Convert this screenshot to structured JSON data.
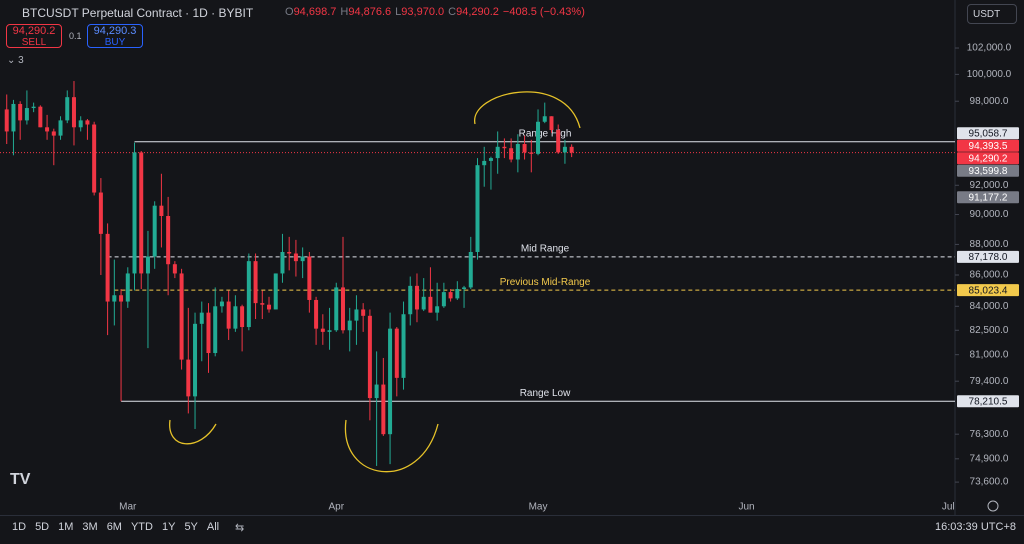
{
  "header": {
    "title": "BTCUSDT Perpetual Contract · 1D · BYBIT",
    "ohlc": [
      {
        "key": "O",
        "value": "94,698.7"
      },
      {
        "key": "H",
        "value": "94,876.6"
      },
      {
        "key": "L",
        "value": "93,970.0"
      },
      {
        "key": "C",
        "value": "94,290.2"
      }
    ],
    "change": "−408.5 (−0.43%)",
    "sell_price": "94,290.2",
    "sell": "SELL",
    "spread": "0.1",
    "buy_price": "94,290.3",
    "buy": "BUY",
    "indicators": "3",
    "currency": "USDT"
  },
  "toolbar": {
    "ranges": [
      "1D",
      "5D",
      "1M",
      "3M",
      "6M",
      "YTD",
      "1Y",
      "5Y",
      "All"
    ],
    "time": "16:03:39 UTC+8"
  },
  "chart_data": {
    "type": "candlestick",
    "log_scale": true,
    "up_color": "#22ab94",
    "down_color": "#f23645",
    "categories": [
      null,
      null,
      null,
      null,
      null,
      null,
      null,
      null,
      null,
      null,
      null,
      null,
      null,
      null,
      null,
      null,
      null,
      null,
      null,
      null,
      null,
      null,
      null,
      null,
      null,
      null,
      null,
      null,
      null,
      null,
      null,
      null,
      null,
      null,
      null,
      null,
      null,
      null,
      null,
      null,
      null,
      null,
      null,
      null,
      null,
      null,
      null,
      null,
      null,
      null,
      null,
      null,
      null,
      null,
      null,
      null,
      null,
      null,
      null,
      null,
      null,
      null,
      null,
      null,
      null,
      null,
      null,
      null,
      null,
      null,
      null,
      null,
      null,
      null,
      null,
      null,
      null,
      null,
      null,
      null,
      null,
      null,
      null,
      null,
      null
    ],
    "open": [
      97400,
      95800,
      97800,
      96600,
      97500,
      97600,
      96100,
      95800,
      95500,
      96600,
      98300,
      96100,
      96600,
      96300,
      91500,
      88700,
      84300,
      84700,
      84300,
      86100,
      94300,
      86100,
      87200,
      90600,
      89900,
      86700,
      86100,
      80700,
      78500,
      82900,
      83600,
      81100,
      84000,
      84300,
      82600,
      84000,
      82700,
      86900,
      84200,
      84100,
      83800,
      86100,
      87500,
      87400,
      86900,
      87200,
      84400,
      82600,
      82400,
      82500,
      85200,
      82500,
      83100,
      83800,
      83400,
      78400,
      79200,
      76300,
      82600,
      79600,
      83500,
      85300,
      83800,
      84600,
      83600,
      84000,
      84900,
      84500,
      85100,
      85200,
      87500,
      93400,
      93700,
      93900,
      94700,
      94600,
      93800,
      94900,
      94300,
      94200,
      96500,
      96900,
      95900,
      94300,
      94698.7
    ],
    "high": [
      98500,
      98100,
      98000,
      98800,
      97900,
      97700,
      97000,
      96000,
      96900,
      98800,
      99500,
      96900,
      96700,
      96500,
      92500,
      89400,
      87000,
      85100,
      86500,
      95000,
      94400,
      88900,
      90900,
      92800,
      91200,
      86900,
      86400,
      83900,
      83600,
      84300,
      84200,
      85200,
      84600,
      85000,
      84700,
      84100,
      87400,
      87400,
      85000,
      84600,
      86100,
      88700,
      88500,
      88300,
      87800,
      87500,
      84600,
      83500,
      83900,
      85500,
      88500,
      83900,
      84700,
      84200,
      83800,
      81200,
      80800,
      83600,
      82700,
      84300,
      85900,
      86100,
      85800,
      86500,
      85500,
      85500,
      85100,
      85600,
      85300,
      88500,
      93900,
      94700,
      94000,
      95800,
      95300,
      95300,
      95600,
      95500,
      95200,
      97400,
      97900,
      96900,
      96300,
      95200,
      94876.6
    ],
    "low": [
      94900,
      94100,
      95200,
      96300,
      97200,
      96100,
      95200,
      93400,
      95200,
      96400,
      94800,
      95800,
      95200,
      91300,
      86000,
      82200,
      82800,
      78210.5,
      83900,
      85000,
      85100,
      81400,
      86400,
      87800,
      84700,
      85800,
      80100,
      77500,
      76600,
      80600,
      79900,
      80900,
      83600,
      81900,
      82400,
      81200,
      82500,
      83200,
      83200,
      83600,
      83800,
      85500,
      86300,
      85900,
      85800,
      83600,
      81600,
      81600,
      81300,
      82400,
      82300,
      81200,
      81600,
      82400,
      77100,
      74500,
      76200,
      74600,
      78500,
      78900,
      82800,
      83000,
      83700,
      83600,
      83100,
      83900,
      84300,
      84400,
      83900,
      85100,
      87000,
      91900,
      91700,
      92800,
      93900,
      93600,
      92900,
      93800,
      92900,
      94100,
      96400,
      95700,
      94200,
      93500,
      93970
    ],
    "close": [
      95800,
      97800,
      96600,
      97500,
      97600,
      96100,
      95800,
      95500,
      96600,
      98300,
      96100,
      96600,
      96300,
      91500,
      88700,
      84300,
      84700,
      84300,
      86100,
      94300,
      86100,
      87200,
      90600,
      89900,
      86700,
      86100,
      80700,
      78500,
      82900,
      83600,
      81100,
      84000,
      84300,
      82600,
      84000,
      82700,
      86900,
      84200,
      84100,
      83800,
      86100,
      87500,
      87400,
      86900,
      87200,
      84400,
      82600,
      82400,
      82500,
      85200,
      82500,
      83100,
      83800,
      83400,
      78400,
      79200,
      76300,
      82600,
      79600,
      83500,
      85300,
      83800,
      84600,
      83600,
      84000,
      84900,
      84500,
      85100,
      85200,
      87500,
      93400,
      93700,
      93900,
      94700,
      94600,
      93800,
      94900,
      94300,
      94200,
      96500,
      96900,
      95900,
      94300,
      94698.7,
      94290.2
    ],
    "xlim": [
      -1,
      141
    ],
    "xticks": [
      {
        "value": 18,
        "label": "Mar"
      },
      {
        "value": 49,
        "label": "Apr"
      },
      {
        "value": 79,
        "label": "May"
      },
      {
        "value": 110,
        "label": "Jun"
      },
      {
        "value": 140,
        "label": "Jul"
      }
    ],
    "ylim": [
      72890,
      105750
    ],
    "yticks": [
      {
        "value": 102000,
        "label": "102,000.0"
      },
      {
        "value": 100000,
        "label": "100,000.0"
      },
      {
        "value": 98000,
        "label": "98,000.0"
      },
      {
        "value": 92000,
        "label": "92,000.0"
      },
      {
        "value": 90000,
        "label": "90,000.0"
      },
      {
        "value": 88000,
        "label": "88,000.0"
      },
      {
        "value": 86000,
        "label": "86,000.0"
      },
      {
        "value": 84000,
        "label": "84,000.0"
      },
      {
        "value": 82500,
        "label": "82,500.0"
      },
      {
        "value": 81000,
        "label": "81,000.0"
      },
      {
        "value": 79400,
        "label": "79,400.0"
      },
      {
        "value": 76300,
        "label": "76,300.0"
      },
      {
        "value": 74900,
        "label": "74,900.0"
      },
      {
        "value": 73600,
        "label": "73,600.0"
      }
    ],
    "levels": [
      {
        "name": "Range High",
        "value": 95058.7,
        "label": "95,058.7",
        "color": "#e0e3eb",
        "dashed": false
      },
      {
        "name": "Mid Range",
        "value": 87178.0,
        "label": "87,178.0",
        "color": "#e0e3eb",
        "dashed": true
      },
      {
        "name": "Previous Mid-Range",
        "value": 85023.4,
        "label": "85,023.4",
        "color": "#f2c94c",
        "dashed": true
      },
      {
        "name": "Range Low",
        "value": 78210.5,
        "label": "78,210.5",
        "color": "#e0e3eb",
        "dashed": false
      }
    ],
    "price_markers": [
      {
        "value": 94393.5,
        "label": "94,393.5",
        "color": "#f23645",
        "dotted_line": false
      },
      {
        "value": 94290.2,
        "label": "94,290.2",
        "color": "#f23645",
        "dotted_line": true
      },
      {
        "value": 93599.8,
        "label": "93,599.8",
        "color": "#787b86",
        "dotted_line": false
      },
      {
        "value": 91177.2,
        "label": "91,177.2",
        "color": "#787b86",
        "dotted_line": false
      }
    ]
  }
}
